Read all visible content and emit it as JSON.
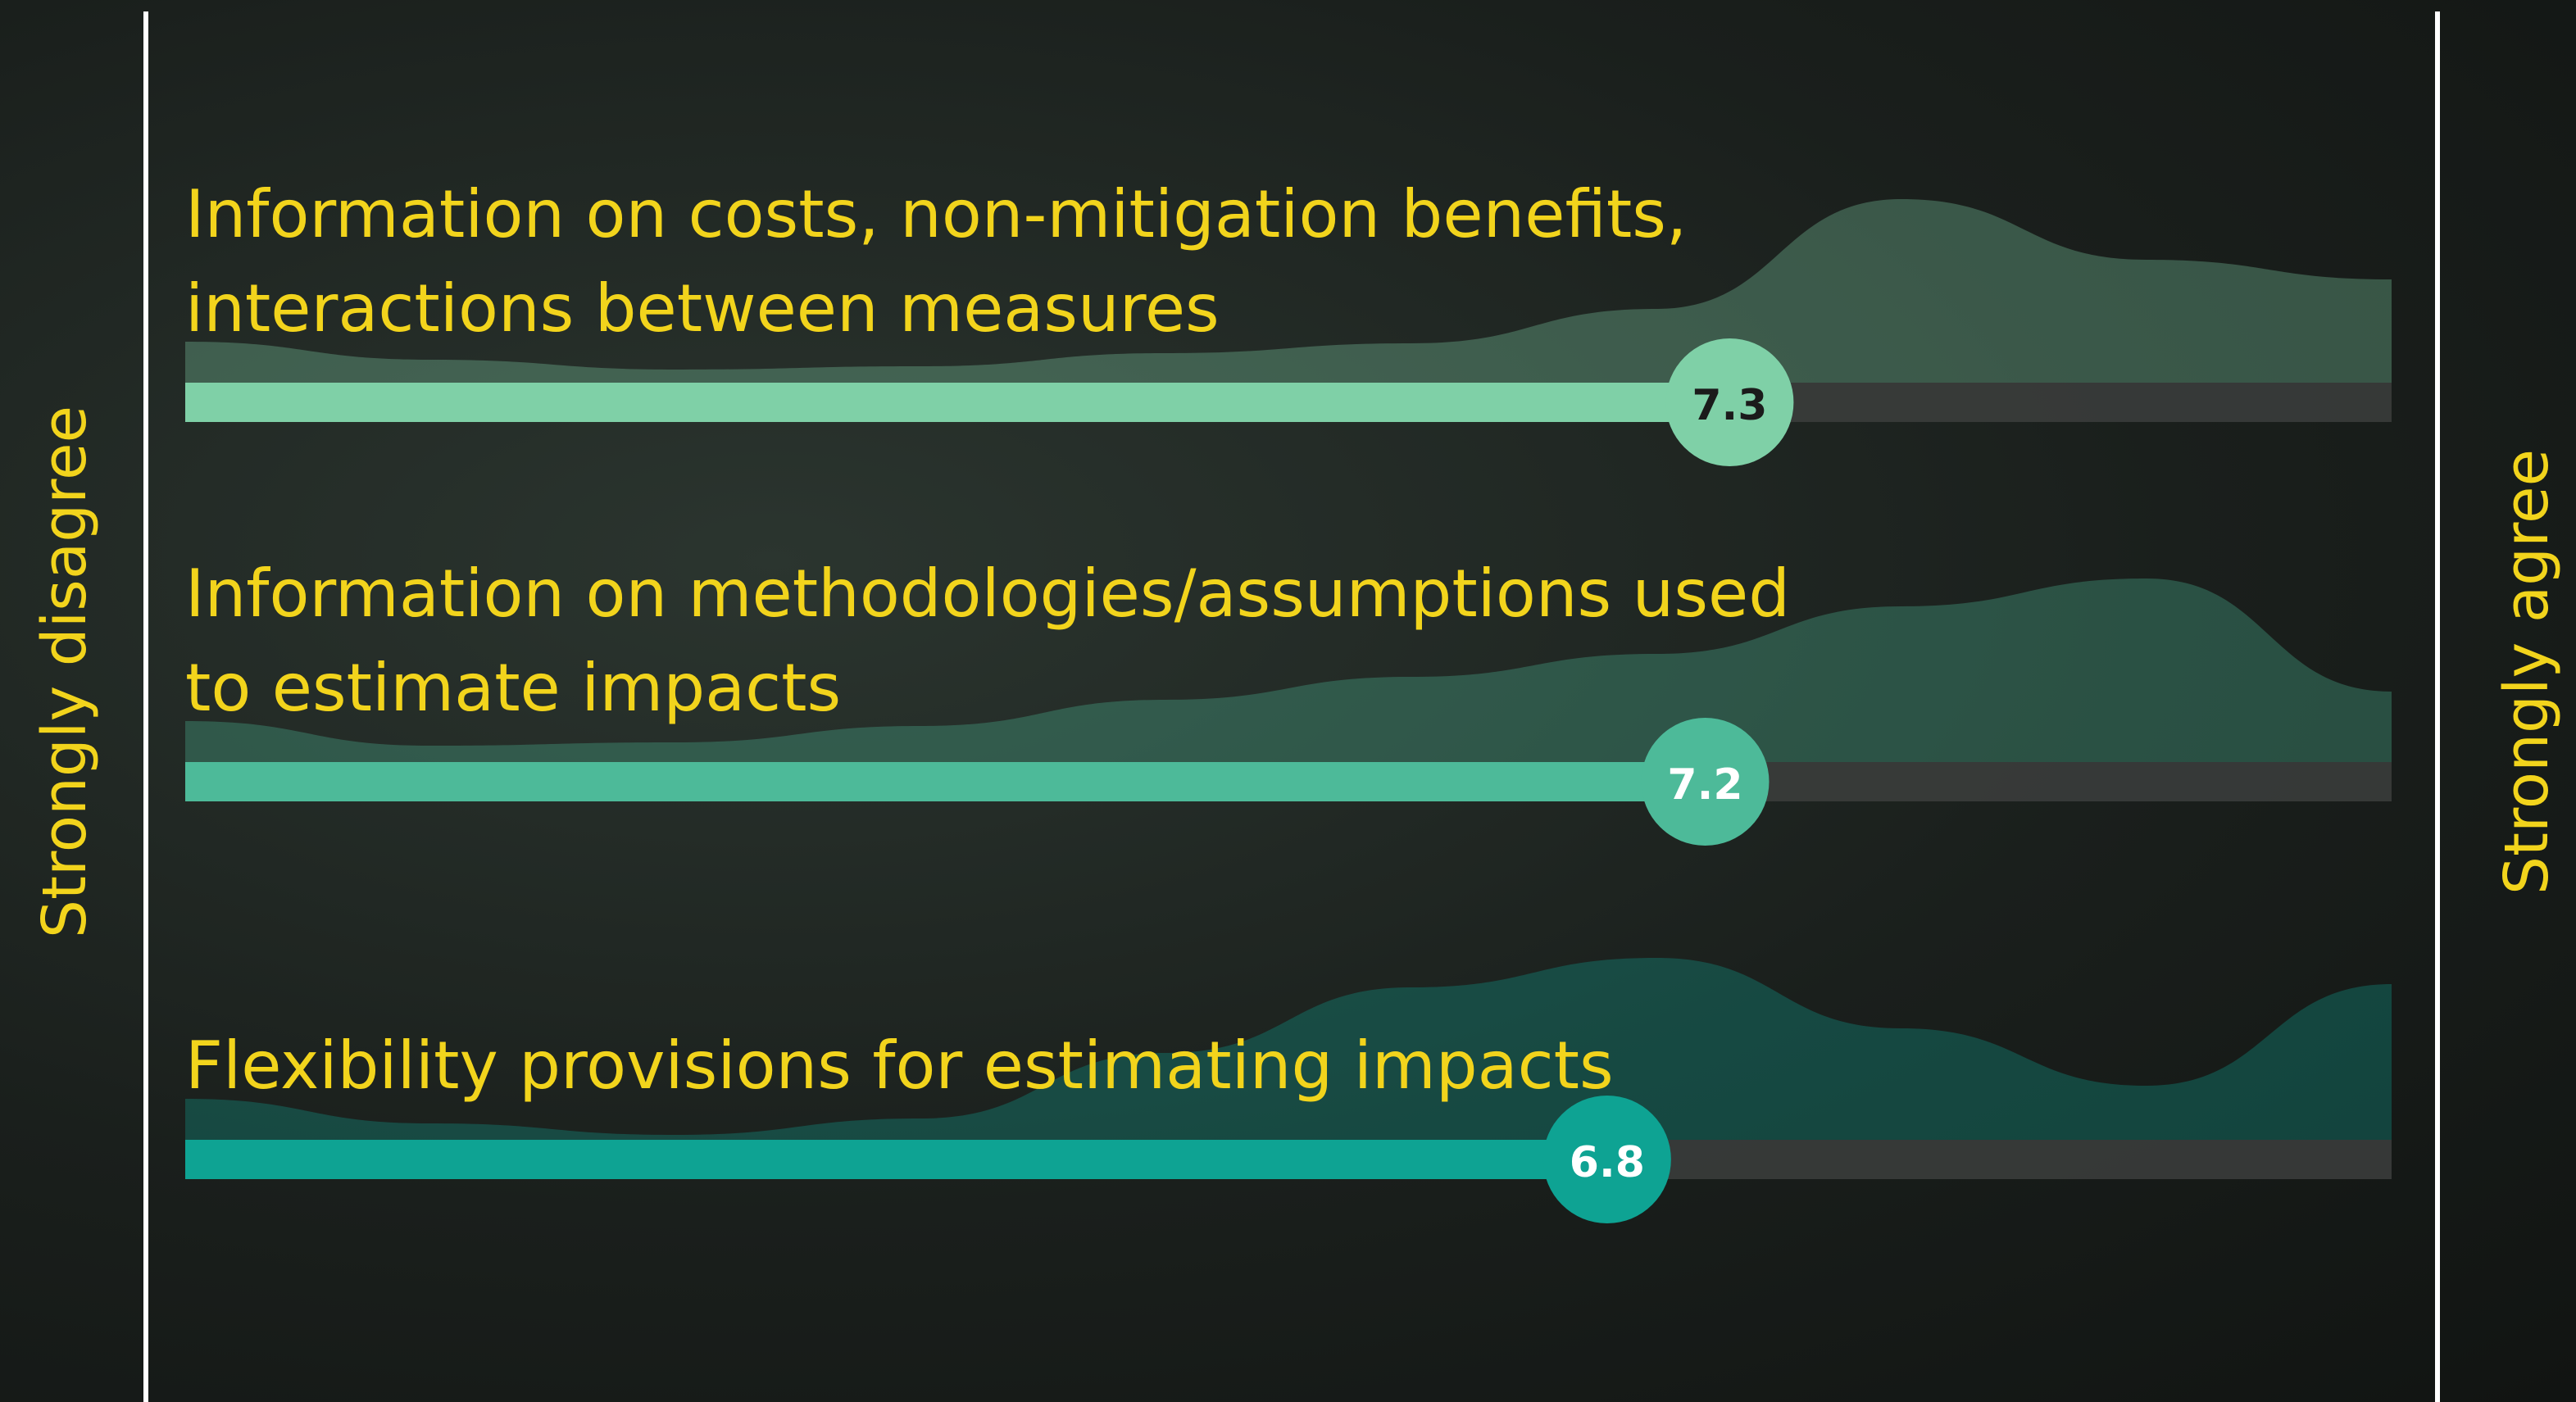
{
  "chart_data": {
    "type": "slider",
    "left_label": "Strongly disagree",
    "right_label": "Strongly agree",
    "categories": [
      [
        "Information on costs, non-mitigation benefits,",
        "interactions between measures"
      ],
      [
        "Information on methodologies/assumptions used",
        "to estimate impacts"
      ],
      [
        "Flexibility provisions for estimating impacts"
      ]
    ],
    "values": [
      7.3,
      7.2,
      6.8
    ],
    "colors": [
      "#7fd0a7",
      "#4dba99",
      "#0ea393"
    ],
    "label_colors": [
      "#1b1b1b",
      "#ffffff",
      "#ffffff"
    ],
    "xlim": [
      1,
      10
    ],
    "density_x": [
      1,
      2,
      3,
      4,
      5,
      6,
      7,
      8,
      9,
      10
    ],
    "density": [
      [
        25,
        14,
        8,
        10,
        18,
        24,
        45,
        112,
        75,
        63
      ],
      [
        25,
        10,
        12,
        22,
        38,
        52,
        66,
        95,
        112,
        43
      ],
      [
        25,
        10,
        3,
        13,
        53,
        93,
        111,
        68,
        33,
        95
      ]
    ]
  }
}
